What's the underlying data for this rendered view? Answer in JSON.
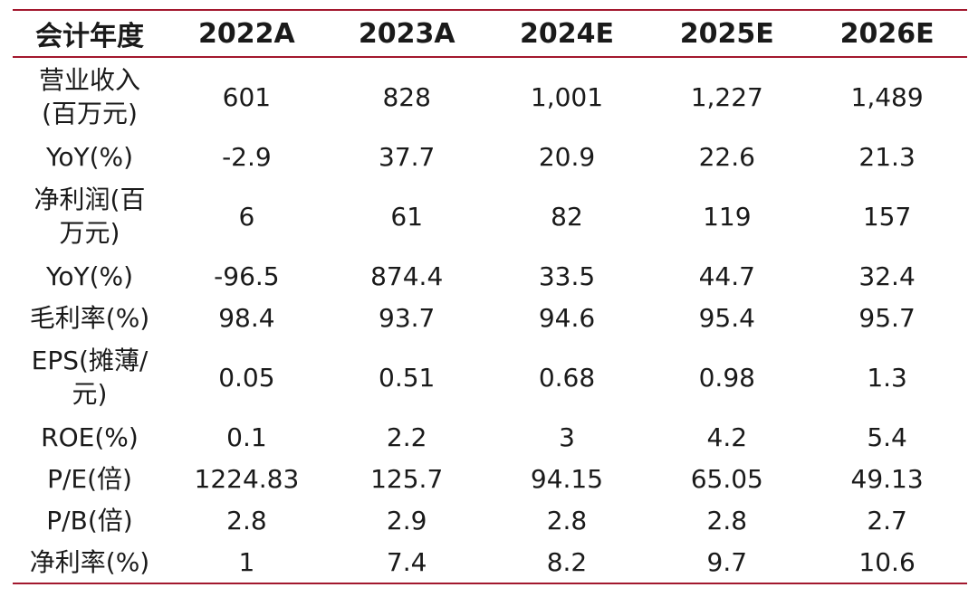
{
  "table": {
    "headers": [
      "会计年度",
      "2022A",
      "2023A",
      "2024E",
      "2025E",
      "2026E"
    ],
    "rows": [
      {
        "label": "营业收入(百万元)",
        "values": [
          "601",
          "828",
          "1,001",
          "1,227",
          "1,489"
        ]
      },
      {
        "label": "YoY(%)",
        "values": [
          "-2.9",
          "37.7",
          "20.9",
          "22.6",
          "21.3"
        ]
      },
      {
        "label": "净利润(百万元)",
        "values": [
          "6",
          "61",
          "82",
          "119",
          "157"
        ]
      },
      {
        "label": "YoY(%)",
        "values": [
          "-96.5",
          "874.4",
          "33.5",
          "44.7",
          "32.4"
        ]
      },
      {
        "label": "毛利率(%)",
        "values": [
          "98.4",
          "93.7",
          "94.6",
          "95.4",
          "95.7"
        ]
      },
      {
        "label": "EPS(摊薄/元)",
        "values": [
          "0.05",
          "0.51",
          "0.68",
          "0.98",
          "1.3"
        ]
      },
      {
        "label": "ROE(%)",
        "values": [
          "0.1",
          "2.2",
          "3",
          "4.2",
          "5.4"
        ]
      },
      {
        "label": "P/E(倍)",
        "values": [
          "1224.83",
          "125.7",
          "94.15",
          "65.05",
          "49.13"
        ]
      },
      {
        "label": "P/B(倍)",
        "values": [
          "2.8",
          "2.9",
          "2.8",
          "2.8",
          "2.7"
        ]
      },
      {
        "label": "净利率(%)",
        "values": [
          "1",
          "7.4",
          "8.2",
          "9.7",
          "10.6"
        ]
      }
    ]
  },
  "colors": {
    "rule": "#a3182e",
    "text": "#1a1a1a"
  }
}
